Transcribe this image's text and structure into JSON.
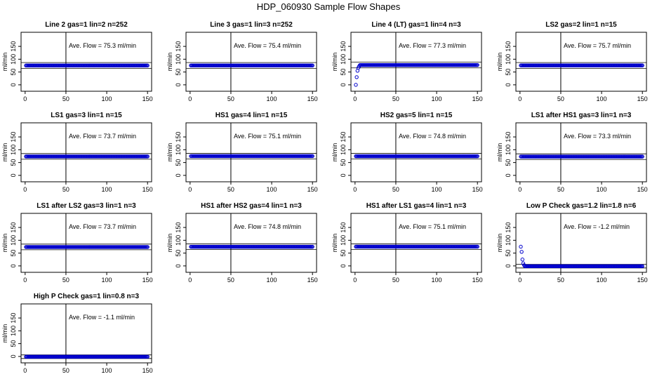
{
  "title": "HDP_060930  Sample Flow Shapes",
  "y_axis_label": "ml/min",
  "x_ticks": [
    0,
    50,
    100,
    150
  ],
  "y_ticks": [
    0,
    50,
    100,
    150
  ],
  "colors": {
    "points": "#0000cc",
    "axes": "#000000"
  },
  "chart_data": [
    {
      "type": "scatter",
      "title": "Line 2 gas=1 lin=2 n=252",
      "annotation": "Ave. Flow =  75.3  ml/min",
      "xlim": [
        -5,
        155
      ],
      "ylim": [
        -25,
        205
      ],
      "reference_x": 50,
      "band": [
        64,
        87
      ],
      "pattern": {
        "kind": "flat",
        "n": 150,
        "value": 75.3
      }
    },
    {
      "type": "scatter",
      "title": "Line 3 gas=1 lin=3 n=252",
      "annotation": "Ave. Flow =  75.4  ml/min",
      "xlim": [
        -5,
        155
      ],
      "ylim": [
        -25,
        205
      ],
      "reference_x": 50,
      "band": [
        64,
        87
      ],
      "pattern": {
        "kind": "flat",
        "n": 150,
        "value": 75.4
      }
    },
    {
      "type": "scatter",
      "title": "Line 4 (LT) gas=1 lin=4 n=3",
      "annotation": "Ave. Flow =  77.3  ml/min",
      "xlim": [
        -5,
        155
      ],
      "ylim": [
        -25,
        205
      ],
      "reference_x": 50,
      "band": [
        66,
        89
      ],
      "pattern": {
        "kind": "rise",
        "n": 150,
        "value": 77.3,
        "start": [
          0,
          30,
          55,
          66,
          72
        ]
      }
    },
    {
      "type": "scatter",
      "title": "LS2 gas=2 lin=1 n=15",
      "annotation": "Ave. Flow =  75.7  ml/min",
      "xlim": [
        -5,
        155
      ],
      "ylim": [
        -25,
        205
      ],
      "reference_x": 50,
      "band": [
        64,
        87
      ],
      "pattern": {
        "kind": "flat",
        "n": 150,
        "value": 75.7
      }
    },
    {
      "type": "scatter",
      "title": "LS1 gas=3 lin=1 n=15",
      "annotation": "Ave. Flow =  73.7  ml/min",
      "xlim": [
        -5,
        155
      ],
      "ylim": [
        -25,
        205
      ],
      "reference_x": 50,
      "band": [
        63,
        85
      ],
      "pattern": {
        "kind": "flat",
        "n": 150,
        "value": 73.7
      }
    },
    {
      "type": "scatter",
      "title": "HS1 gas=4 lin=1 n=15",
      "annotation": "Ave. Flow =  75.1  ml/min",
      "xlim": [
        -5,
        155
      ],
      "ylim": [
        -25,
        205
      ],
      "reference_x": 50,
      "band": [
        64,
        86
      ],
      "pattern": {
        "kind": "flat",
        "n": 150,
        "value": 75.1
      }
    },
    {
      "type": "scatter",
      "title": "HS2 gas=5 lin=1 n=15",
      "annotation": "Ave. Flow =  74.8  ml/min",
      "xlim": [
        -5,
        155
      ],
      "ylim": [
        -25,
        205
      ],
      "reference_x": 50,
      "band": [
        64,
        86
      ],
      "pattern": {
        "kind": "flat",
        "n": 150,
        "value": 74.8
      }
    },
    {
      "type": "scatter",
      "title": "LS1 after HS1 gas=3 lin=1 n=3",
      "annotation": "Ave. Flow =  73.3  ml/min",
      "xlim": [
        -5,
        155
      ],
      "ylim": [
        -25,
        205
      ],
      "reference_x": 50,
      "band": [
        62,
        84
      ],
      "pattern": {
        "kind": "flat",
        "n": 150,
        "value": 73.3
      }
    },
    {
      "type": "scatter",
      "title": "LS1 after LS2 gas=3 lin=1 n=3",
      "annotation": "Ave. Flow =  73.7  ml/min",
      "xlim": [
        -5,
        155
      ],
      "ylim": [
        -25,
        205
      ],
      "reference_x": 50,
      "band": [
        63,
        85
      ],
      "pattern": {
        "kind": "flat",
        "n": 150,
        "value": 73.7
      }
    },
    {
      "type": "scatter",
      "title": "HS1 after HS2 gas=4 lin=1 n=3",
      "annotation": "Ave. Flow =  74.8  ml/min",
      "xlim": [
        -5,
        155
      ],
      "ylim": [
        -25,
        205
      ],
      "reference_x": 50,
      "band": [
        64,
        86
      ],
      "pattern": {
        "kind": "flat",
        "n": 150,
        "value": 74.8
      }
    },
    {
      "type": "scatter",
      "title": "HS1 after LS1 gas=4 lin=1 n=3",
      "annotation": "Ave. Flow =  75.1  ml/min",
      "xlim": [
        -5,
        155
      ],
      "ylim": [
        -25,
        205
      ],
      "reference_x": 50,
      "band": [
        64,
        86
      ],
      "pattern": {
        "kind": "flat",
        "n": 150,
        "value": 75.1
      }
    },
    {
      "type": "scatter",
      "title": "Low P Check gas=1.2 lin=1.8 n=6",
      "annotation": "Ave. Flow =  -1.2  ml/min",
      "xlim": [
        -5,
        155
      ],
      "ylim": [
        -25,
        205
      ],
      "reference_x": 50,
      "band": [
        -8,
        6
      ],
      "pattern": {
        "kind": "decay",
        "n": 150,
        "value": -1.2,
        "start": [
          75,
          55,
          25,
          10,
          3
        ]
      }
    },
    {
      "type": "scatter",
      "title": "High P Check gas=1 lin=0.8 n=3",
      "annotation": "Ave. Flow =  -1.1  ml/min",
      "xlim": [
        -5,
        155
      ],
      "ylim": [
        -25,
        205
      ],
      "reference_x": 50,
      "band": [
        -8,
        6
      ],
      "pattern": {
        "kind": "flat",
        "n": 150,
        "value": -1.1
      }
    }
  ]
}
